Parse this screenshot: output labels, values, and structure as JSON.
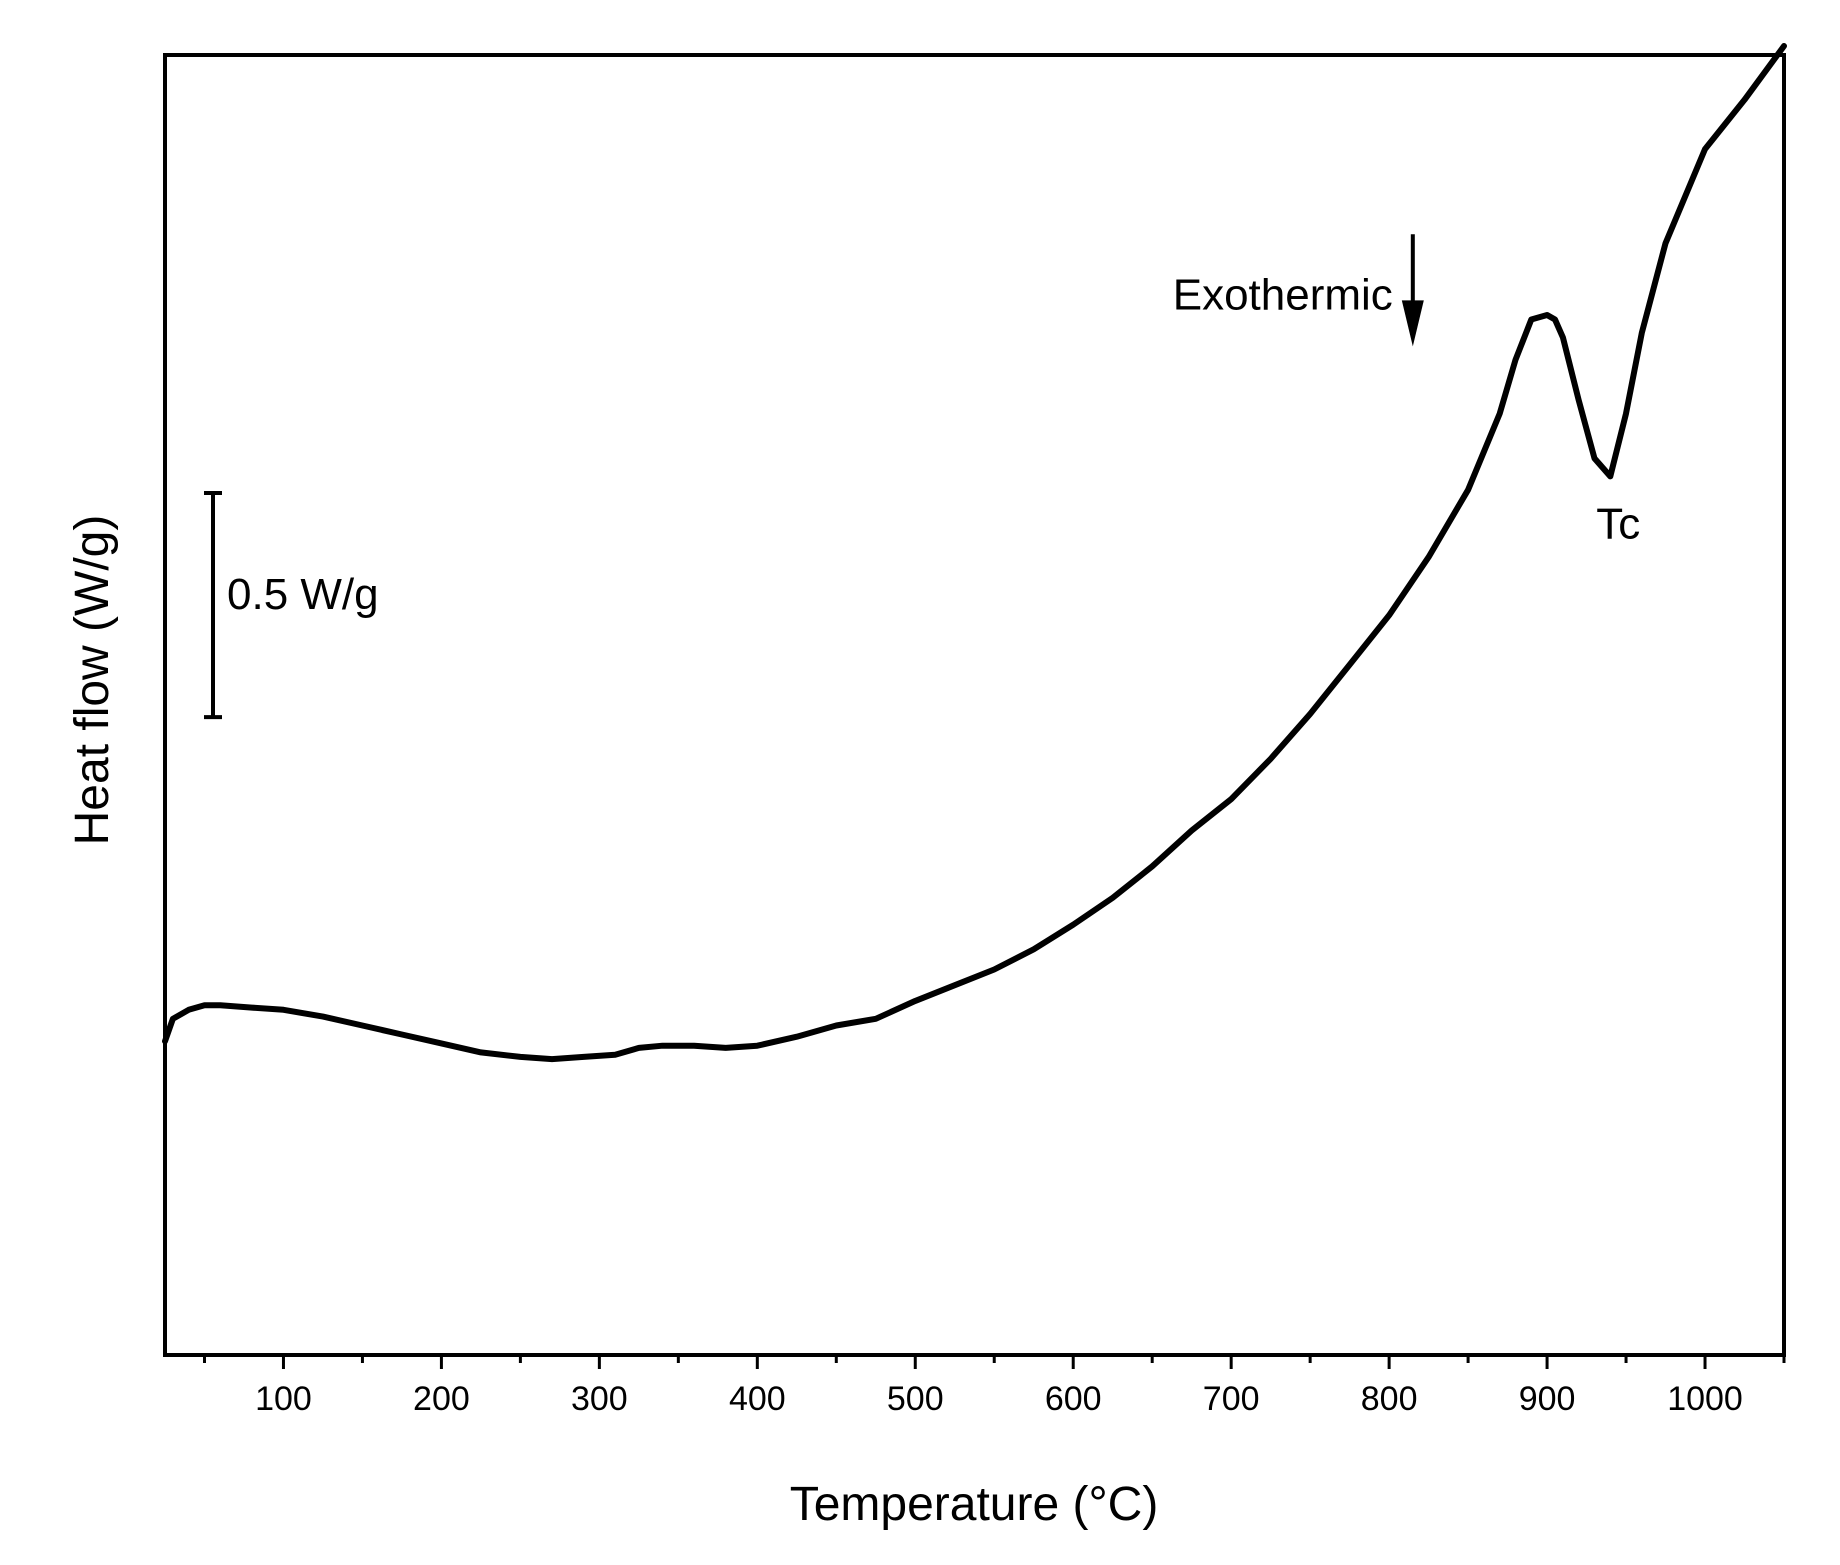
{
  "chart_data": {
    "type": "line",
    "title": "",
    "xlabel": "Temperature (°C)",
    "ylabel": "Heat flow (W/g)",
    "xlim": [
      25,
      1050
    ],
    "ylim": [
      0,
      2.9
    ],
    "x_ticks": [
      100,
      200,
      300,
      400,
      500,
      600,
      700,
      800,
      900,
      1000
    ],
    "x_tick_labels": [
      "100",
      "200",
      "300",
      "400",
      "500",
      "600",
      "700",
      "800",
      "900",
      "1000"
    ],
    "y_ticks_visible": false,
    "series": [
      {
        "name": "Heat flow",
        "color": "#000000",
        "x": [
          25,
          30,
          40,
          50,
          60,
          80,
          100,
          125,
          150,
          175,
          200,
          225,
          250,
          270,
          290,
          310,
          325,
          340,
          360,
          380,
          400,
          425,
          450,
          475,
          500,
          525,
          550,
          575,
          600,
          625,
          650,
          675,
          700,
          725,
          750,
          775,
          800,
          825,
          850,
          870,
          880,
          890,
          900,
          905,
          910,
          920,
          930,
          940,
          950,
          960,
          975,
          1000,
          1025,
          1050
        ],
        "y": [
          0.7,
          0.75,
          0.77,
          0.78,
          0.78,
          0.775,
          0.77,
          0.755,
          0.735,
          0.715,
          0.695,
          0.675,
          0.665,
          0.66,
          0.665,
          0.67,
          0.685,
          0.69,
          0.69,
          0.685,
          0.69,
          0.71,
          0.735,
          0.75,
          0.79,
          0.825,
          0.86,
          0.905,
          0.96,
          1.02,
          1.09,
          1.17,
          1.24,
          1.33,
          1.43,
          1.54,
          1.65,
          1.78,
          1.93,
          2.1,
          2.22,
          2.31,
          2.32,
          2.31,
          2.27,
          2.13,
          2.0,
          1.96,
          2.1,
          2.28,
          2.48,
          2.69,
          2.8,
          2.92
        ]
      }
    ],
    "annotations": {
      "exothermic_label": "Exothermic",
      "exothermic_arrow_x": 815,
      "exothermic_arrow_from_y": 2.5,
      "exothermic_arrow_to_y": 2.25,
      "tc_label": "Tc",
      "tc_x": 940,
      "tc_y": 1.96,
      "scale_bar_label": "0.5 W/g",
      "scale_bar_value": 0.5
    }
  }
}
